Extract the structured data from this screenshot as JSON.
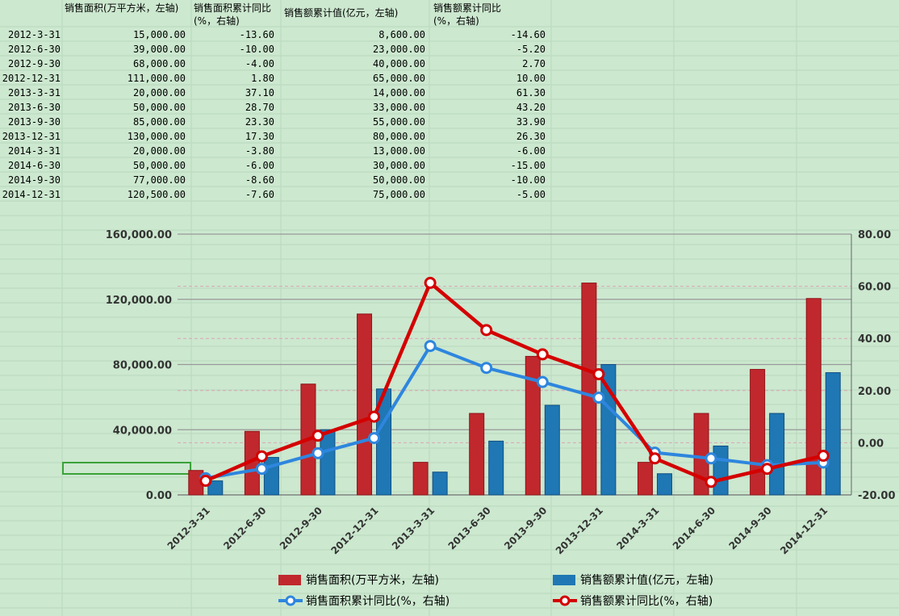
{
  "table": {
    "headers": [
      "销售面积(万平方米，左轴)",
      "销售面积累计同比(%，右轴)",
      "销售额累计值(亿元，左轴)",
      "销售额累计同比(%，右轴)"
    ],
    "rows": [
      [
        "2012-3-31",
        "15,000.00",
        "-13.60",
        "8,600.00",
        "-14.60"
      ],
      [
        "2012-6-30",
        "39,000.00",
        "-10.00",
        "23,000.00",
        "-5.20"
      ],
      [
        "2012-9-30",
        "68,000.00",
        "-4.00",
        "40,000.00",
        "2.70"
      ],
      [
        "2012-12-31",
        "111,000.00",
        "1.80",
        "65,000.00",
        "10.00"
      ],
      [
        "2013-3-31",
        "20,000.00",
        "37.10",
        "14,000.00",
        "61.30"
      ],
      [
        "2013-6-30",
        "50,000.00",
        "28.70",
        "33,000.00",
        "43.20"
      ],
      [
        "2013-9-30",
        "85,000.00",
        "23.30",
        "55,000.00",
        "33.90"
      ],
      [
        "2013-12-31",
        "130,000.00",
        "17.30",
        "80,000.00",
        "26.30"
      ],
      [
        "2014-3-31",
        "20,000.00",
        "-3.80",
        "13,000.00",
        "-6.00"
      ],
      [
        "2014-6-30",
        "50,000.00",
        "-6.00",
        "30,000.00",
        "-15.00"
      ],
      [
        "2014-9-30",
        "77,000.00",
        "-8.60",
        "50,000.00",
        "-10.00"
      ],
      [
        "2014-12-31",
        "120,500.00",
        "-7.60",
        "75,000.00",
        "-5.00"
      ]
    ]
  },
  "chart_data": {
    "type": "bar",
    "categories": [
      "2012-3-31",
      "2012-6-30",
      "2012-9-30",
      "2012-12-31",
      "2013-3-31",
      "2013-6-30",
      "2013-9-30",
      "2013-12-31",
      "2014-3-31",
      "2014-6-30",
      "2014-9-30",
      "2014-12-31"
    ],
    "series": [
      {
        "name": "销售面积(万平方米，左轴)",
        "type": "bar",
        "axis": "left",
        "color": "#c0282d",
        "values": [
          15000,
          39000,
          68000,
          111000,
          20000,
          50000,
          85000,
          130000,
          20000,
          50000,
          77000,
          120500
        ]
      },
      {
        "name": "销售额累计值(亿元，左轴)",
        "type": "bar",
        "axis": "left",
        "color": "#1f77b4",
        "values": [
          8600,
          23000,
          40000,
          65000,
          14000,
          33000,
          55000,
          80000,
          13000,
          30000,
          50000,
          75000
        ]
      },
      {
        "name": "销售面积累计同比(%，右轴)",
        "type": "line",
        "axis": "right",
        "color": "#2e86de",
        "values": [
          -13.6,
          -10.0,
          -4.0,
          1.8,
          37.1,
          28.7,
          23.3,
          17.3,
          -3.8,
          -6.0,
          -8.6,
          -7.6
        ]
      },
      {
        "name": "销售额累计同比(%，右轴)",
        "type": "line",
        "axis": "right",
        "color": "#d40000",
        "values": [
          -14.6,
          -5.2,
          2.7,
          10.0,
          61.3,
          43.2,
          33.9,
          26.3,
          -6.0,
          -15.0,
          -10.0,
          -5.0
        ]
      }
    ],
    "left_axis": {
      "min": 0,
      "max": 160000,
      "ticks": [
        "0.00",
        "40,000.00",
        "80,000.00",
        "120,000.00",
        "160,000.00"
      ]
    },
    "right_axis": {
      "min": -20,
      "max": 80,
      "ticks": [
        "-20.00",
        "0.00",
        "20.00",
        "40.00",
        "60.00",
        "80.00"
      ]
    },
    "legend_position": "bottom",
    "grid": true
  }
}
